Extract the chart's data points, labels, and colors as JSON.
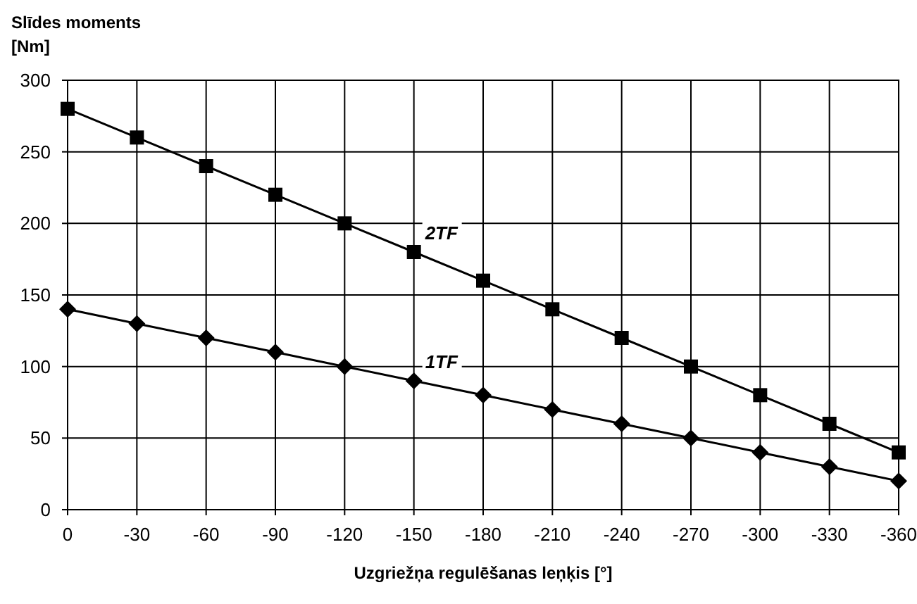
{
  "chart_data": {
    "type": "line",
    "ylabel": "Slīdes moments [Nm]",
    "xlabel": "Uzgriežņa regulēšanas leņķis [°]",
    "x": [
      0,
      -30,
      -60,
      -90,
      -120,
      -150,
      -180,
      -210,
      -240,
      -270,
      -300,
      -330,
      -360
    ],
    "xlim": [
      0,
      -360
    ],
    "xticks": [
      0,
      -30,
      -60,
      -90,
      -120,
      -150,
      -180,
      -210,
      -240,
      -270,
      -300,
      -330,
      -360
    ],
    "ylim": [
      0,
      300
    ],
    "yticks": [
      0,
      50,
      100,
      150,
      200,
      250,
      300
    ],
    "grid": true,
    "series": [
      {
        "name": "2TF",
        "color": "#000000",
        "marker": "square",
        "values": [
          280,
          260,
          240,
          220,
          200,
          180,
          160,
          140,
          120,
          100,
          80,
          60,
          40
        ]
      },
      {
        "name": "1TF",
        "color": "#000000",
        "marker": "diamond",
        "values": [
          140,
          130,
          120,
          110,
          100,
          90,
          80,
          70,
          60,
          50,
          40,
          30,
          20
        ]
      }
    ]
  }
}
